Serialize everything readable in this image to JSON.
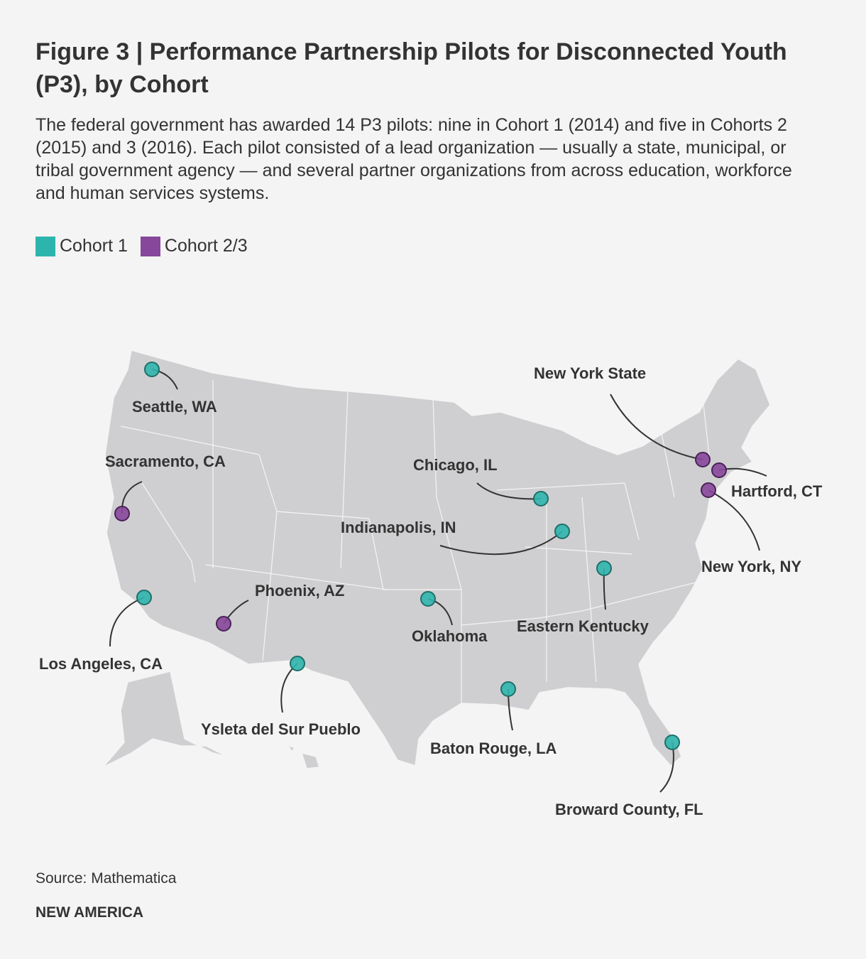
{
  "header": {
    "title": "Figure 3 | Performance Partnership Pilots for Disconnected Youth (P3), by Cohort",
    "subtitle": "The federal government has awarded 14 P3 pilots: nine in Cohort 1 (2014) and five in Cohorts 2 (2015) and 3 (2016). Each pilot consisted of a lead organization — usually a state, municipal, or tribal government agency — and several partner organizations from across education, workforce and human services systems."
  },
  "cohorts": [
    {
      "name": "Cohort 1",
      "color": "#2db5ad",
      "locations": [
        "Seattle, WA",
        "Los Angeles, CA",
        "Ysleta del Sur Pueblo",
        "Oklahoma",
        "Chicago, IL",
        "Indianapolis, IN",
        "Eastern Kentucky",
        "Baton Rouge, LA",
        "Broward County, FL"
      ]
    },
    {
      "name": "Cohort 2/3",
      "color": "#87479b",
      "locations": [
        "Sacramento, CA",
        "Phoenix, AZ",
        "New York State",
        "Hartford, CT",
        "New York, NY"
      ]
    }
  ],
  "footer": {
    "source": "Source: Mathematica",
    "brand": "NEW AMERICA"
  }
}
